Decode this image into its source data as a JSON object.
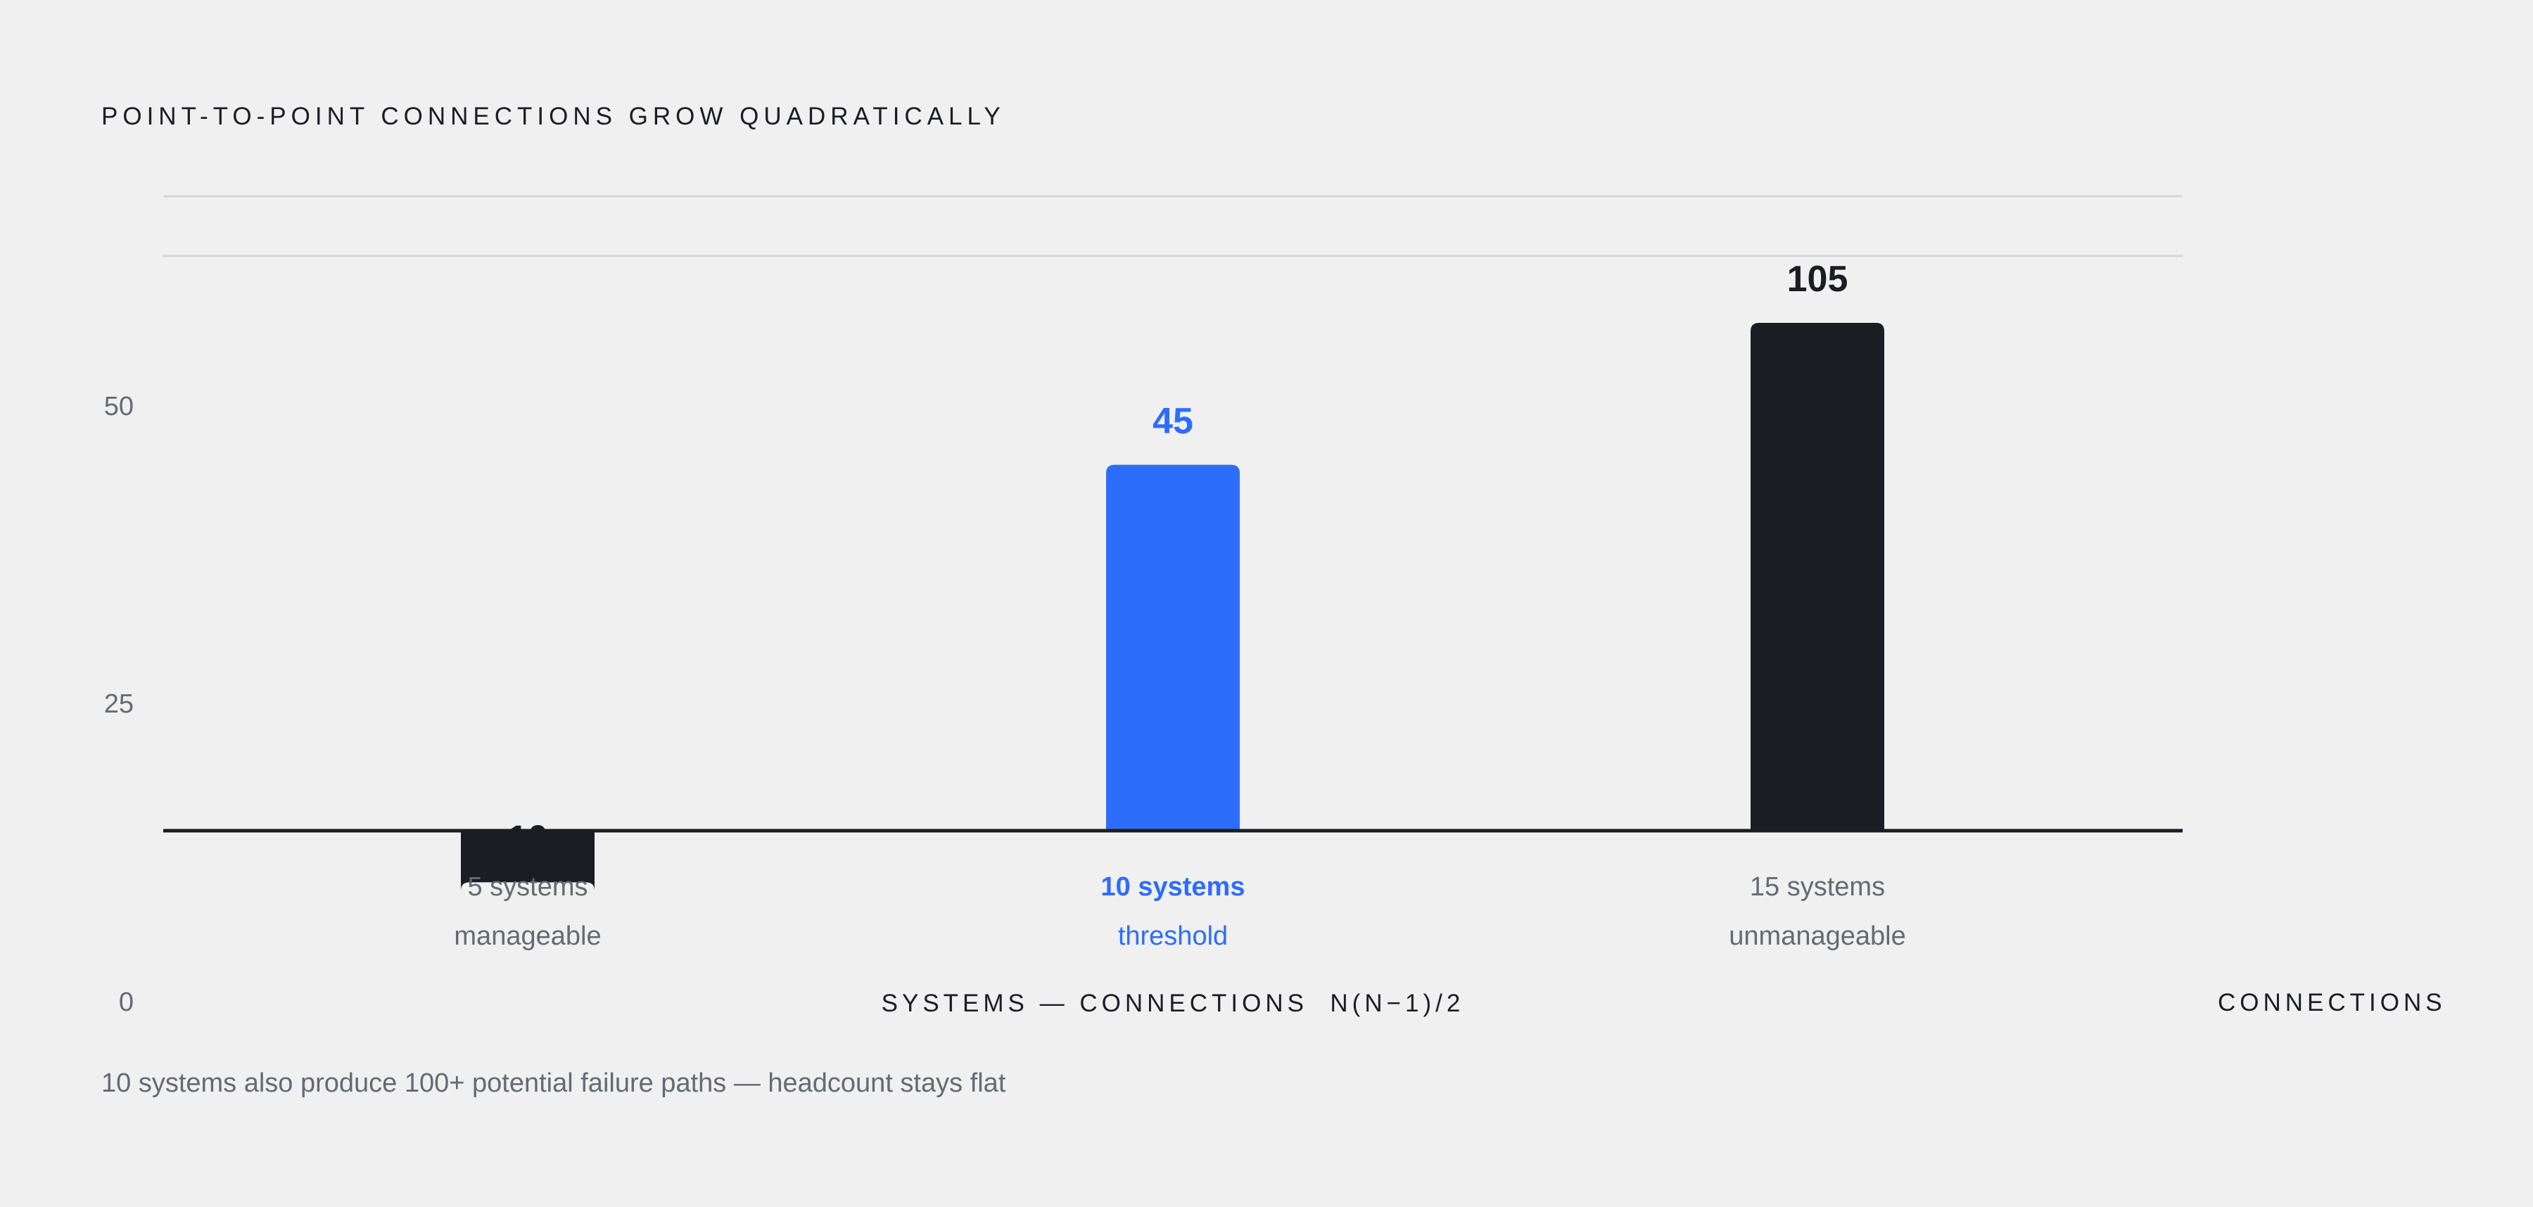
{
  "chart_data": {
    "type": "bar",
    "title": "POINT-TO-POINT CONNECTIONS GROW QUADRATICALLY",
    "xlabel": "SYSTEMS — CONNECTIONS  N(N−1)/2",
    "ylabel": "CONNECTIONS",
    "yticks": [
      "0",
      "25",
      "50"
    ],
    "ylim": [
      0,
      70
    ],
    "grid": true,
    "categories": [
      "5 systems",
      "10 systems",
      "15 systems"
    ],
    "sublabels": [
      "manageable",
      "threshold",
      "unmanageable"
    ],
    "values": [
      10,
      45,
      105
    ],
    "value_labels": [
      "10",
      "45",
      "105"
    ],
    "highlight_index": 1,
    "colors": {
      "default": "#1b1d22",
      "highlight": "#2d6dfc",
      "axis": "#1b1d22",
      "grid": "#d6d6d6",
      "muted": "#666a70"
    }
  },
  "footnote": "10 systems also produce 100+ potential failure paths — headcount stays flat"
}
